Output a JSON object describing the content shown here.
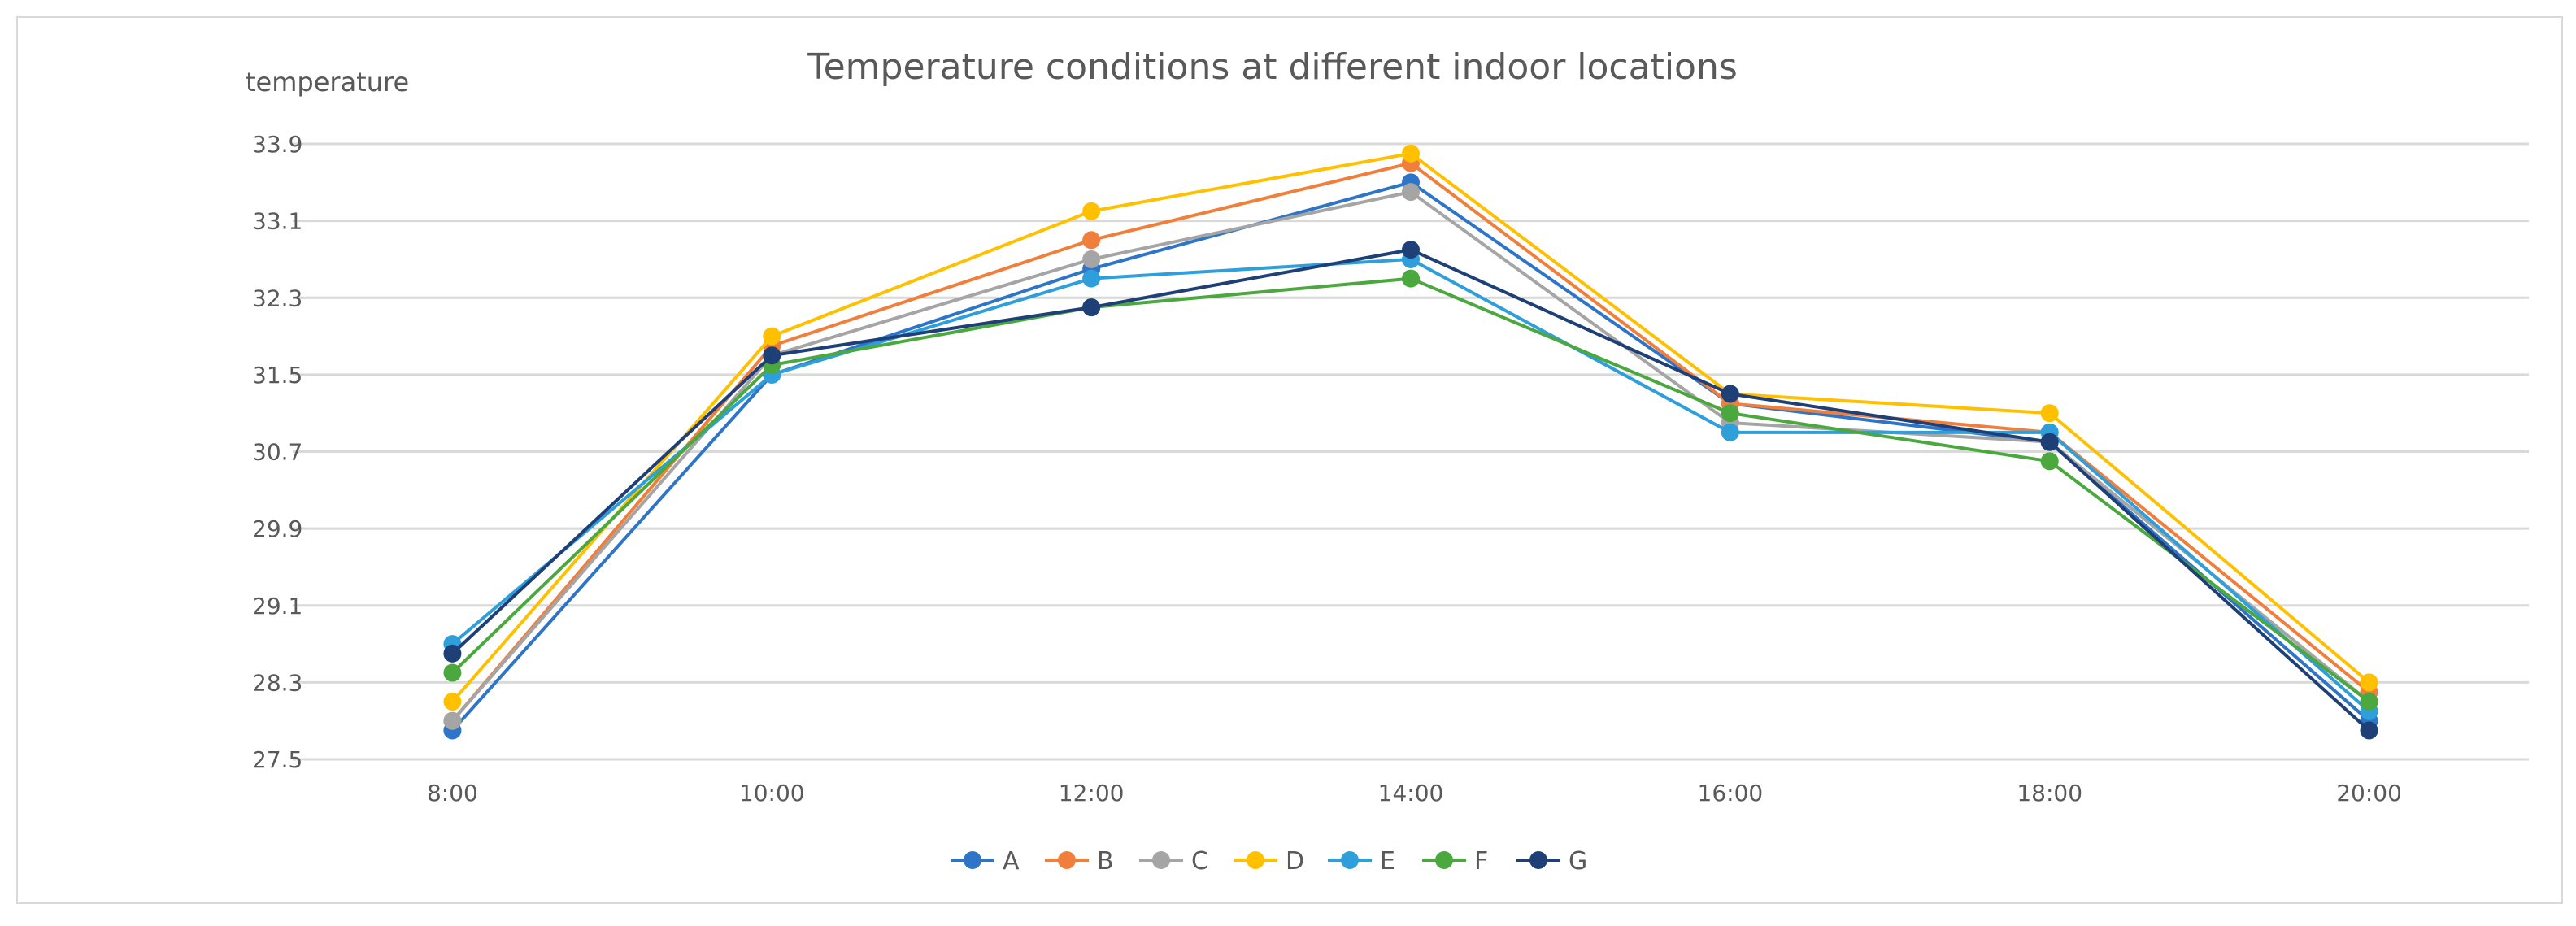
{
  "chart_data": {
    "type": "line",
    "title": "Temperature conditions at different indoor locations",
    "xlabel": "",
    "ylabel": "temperature",
    "categories": [
      "8:00",
      "10:00",
      "12:00",
      "14:00",
      "16:00",
      "18:00",
      "20:00"
    ],
    "yticks": [
      "27.5",
      "28.3",
      "29.1",
      "29.9",
      "30.7",
      "31.5",
      "32.3",
      "33.1",
      "33.9"
    ],
    "ylim": [
      27.5,
      33.9
    ],
    "grid": true,
    "legend_position": "bottom",
    "series": [
      {
        "name": "A",
        "color": "#2E75C8",
        "values": [
          27.8,
          31.5,
          32.6,
          33.5,
          31.2,
          30.8,
          27.9
        ]
      },
      {
        "name": "B",
        "color": "#F07F3C",
        "values": [
          27.9,
          31.8,
          32.9,
          33.7,
          31.2,
          30.9,
          28.2
        ]
      },
      {
        "name": "C",
        "color": "#A5A5A5",
        "values": [
          27.9,
          31.7,
          32.7,
          33.4,
          31.0,
          30.8,
          28.1
        ]
      },
      {
        "name": "D",
        "color": "#FFC000",
        "values": [
          28.1,
          31.9,
          33.2,
          33.8,
          31.3,
          31.1,
          28.3
        ]
      },
      {
        "name": "E",
        "color": "#2E9FDB",
        "values": [
          28.7,
          31.5,
          32.5,
          32.7,
          30.9,
          30.9,
          28.0
        ]
      },
      {
        "name": "F",
        "color": "#4AA83F",
        "values": [
          28.4,
          31.6,
          32.2,
          32.5,
          31.1,
          30.6,
          28.1
        ]
      },
      {
        "name": "G",
        "color": "#1F3F77",
        "values": [
          28.6,
          31.7,
          32.2,
          32.8,
          31.3,
          30.8,
          27.8
        ]
      }
    ]
  }
}
